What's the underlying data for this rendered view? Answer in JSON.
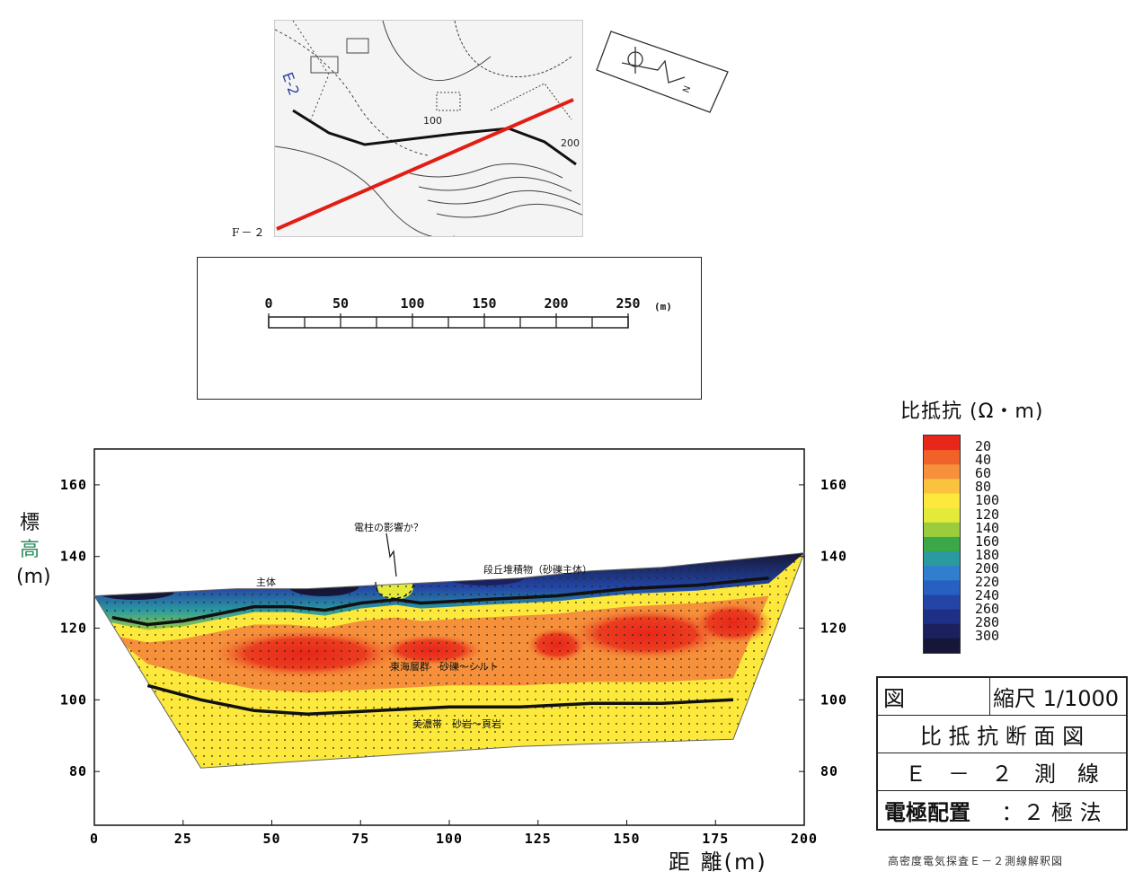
{
  "map": {
    "section_label": "F－２",
    "marker_label": "E-2",
    "contour_labels": [
      "100",
      "200"
    ]
  },
  "scale_bar": {
    "ticks": [
      "0",
      "50",
      "100",
      "150",
      "200",
      "250"
    ],
    "unit": "(m)"
  },
  "axes": {
    "ylabel_chars": [
      "標",
      "高",
      "(m)"
    ],
    "xlabel": "距 離(m)"
  },
  "annotations": {
    "pole": "電柱の影響か？",
    "layer_top": "段丘堆積物（砂礫主体）",
    "layer_top_left": "主体",
    "layer_mid": "東海層群　砂礫～シルト",
    "layer_bottom": "美濃帯　砂岩～頁岩"
  },
  "legend": {
    "title": "比抵抗 (Ω・m)",
    "values": [
      "20",
      "40",
      "60",
      "80",
      "100",
      "120",
      "140",
      "160",
      "180",
      "200",
      "220",
      "240",
      "260",
      "280",
      "300"
    ],
    "colors": [
      "#e8261a",
      "#f0622a",
      "#f6903a",
      "#fbc23e",
      "#fde93c",
      "#e3ea3a",
      "#9ccc3c",
      "#3aa748",
      "#2a9aa0",
      "#2f7fce",
      "#2860c2",
      "#2346a6",
      "#1e3086",
      "#1c205e",
      "#161638"
    ]
  },
  "title_block": {
    "fig_label": "図",
    "scale": "縮尺 1/1000",
    "title": "比 抵 抗 断 面 図",
    "line": "Ｅ　－　２　測　線",
    "electrode_label": "電極配置",
    "electrode_value": "：２ 極 法"
  },
  "caption": "高密度電気探査Ｅ－２測線解釈図",
  "chart_data": {
    "type": "heatmap",
    "title": "",
    "xlabel": "距 離(m)",
    "ylabel": "標高(m)",
    "xlim": [
      0,
      200
    ],
    "ylim": [
      65,
      170
    ],
    "x_ticks": [
      "0",
      "25",
      "50",
      "75",
      "100",
      "125",
      "150",
      "175",
      "200"
    ],
    "y_ticks": [
      "80",
      "100",
      "120",
      "140",
      "160"
    ],
    "ground_surface": {
      "x": [
        0,
        20,
        40,
        60,
        80,
        100,
        120,
        140,
        160,
        180,
        200
      ],
      "y": [
        129,
        130,
        131,
        131,
        132,
        133,
        134,
        136,
        137,
        139,
        141
      ]
    },
    "boundary_upper": {
      "x": [
        5,
        15,
        25,
        35,
        45,
        55,
        65,
        75,
        85,
        92,
        110,
        130,
        150,
        170,
        190
      ],
      "y": [
        123,
        121,
        122,
        124,
        126,
        126,
        125,
        127,
        128,
        127,
        128,
        129,
        131,
        132,
        134
      ]
    },
    "boundary_lower": {
      "x": [
        15,
        30,
        45,
        60,
        80,
        100,
        120,
        140,
        160,
        180
      ],
      "y": [
        104,
        100,
        97,
        96,
        97,
        98,
        98,
        99,
        99,
        100
      ]
    },
    "section_bottom": {
      "x": [
        30,
        120,
        180
      ],
      "y": [
        81,
        87,
        89
      ]
    },
    "resistivity_zones": [
      {
        "name": "段丘堆積物（砂礫主体）",
        "range": "200-300"
      },
      {
        "name": "東海層群　砂礫～シルト",
        "range": "20-80"
      },
      {
        "name": "美濃帯　砂岩～頁岩",
        "range": "80-120"
      }
    ],
    "legend_position": "right",
    "grid": false
  }
}
